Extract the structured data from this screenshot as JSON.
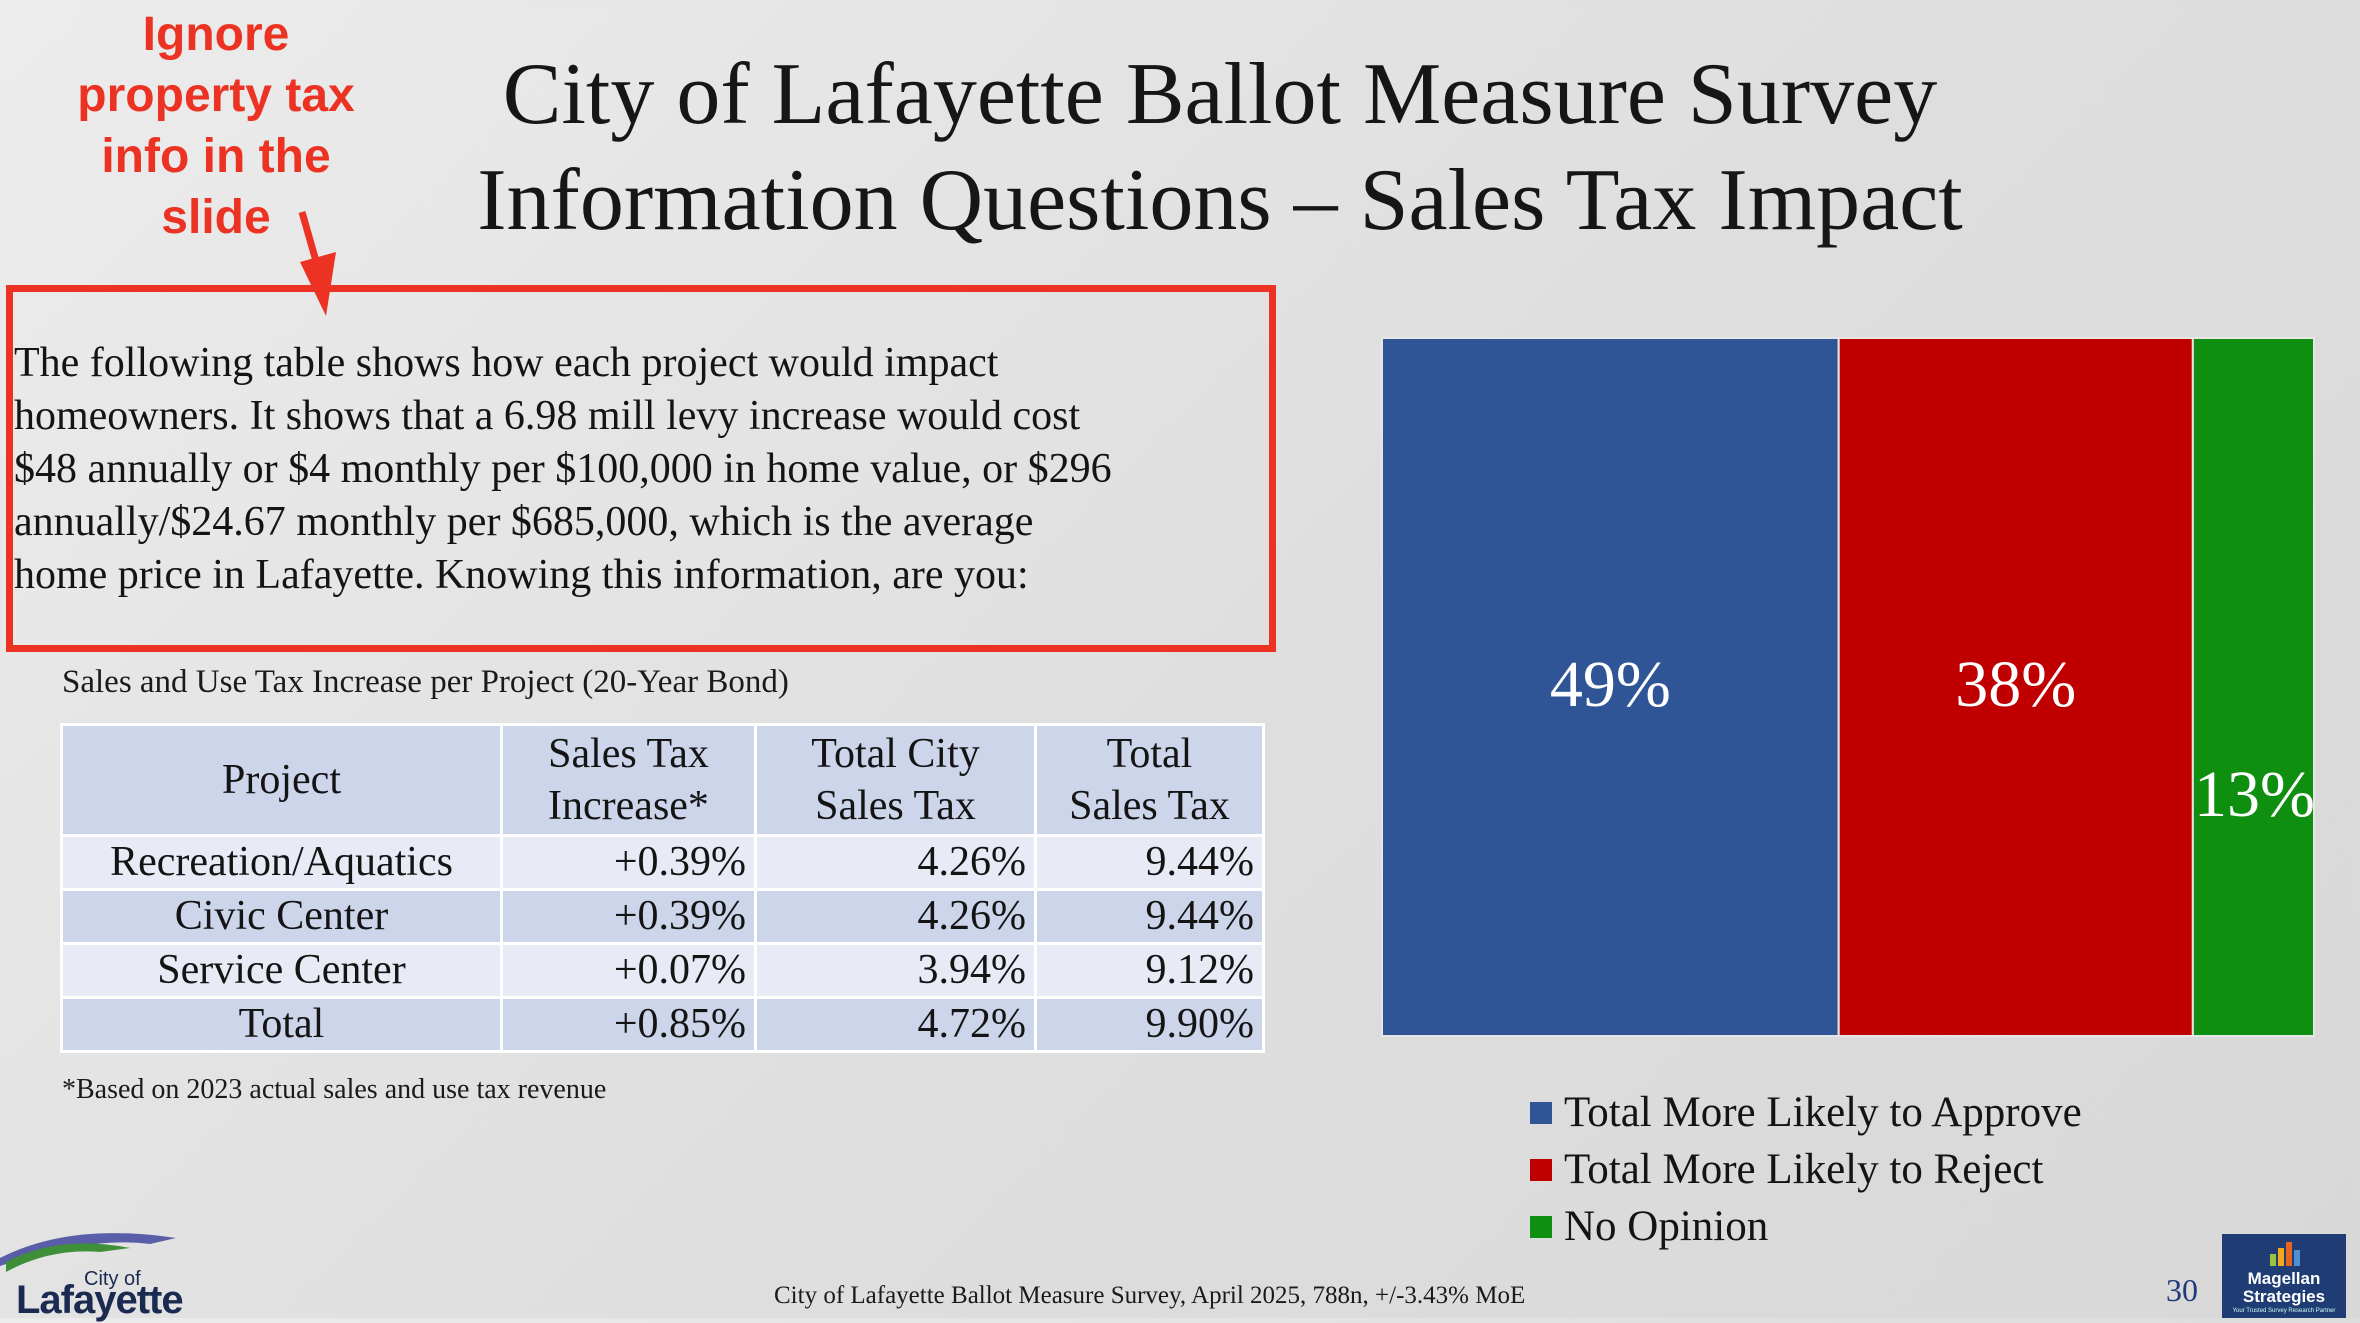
{
  "annotation": {
    "lines": [
      "Ignore",
      "property tax",
      "info in the",
      "slide"
    ],
    "color": "#ec3323"
  },
  "title": {
    "line1": "City of Lafayette Ballot Measure Survey",
    "line2": "Information Questions – Sales Tax Impact"
  },
  "intro_lines": [
    "The following table shows how each project would impact",
    "homeowners. It shows that a 6.98 mill levy increase would cost",
    "$48 annually or $4 monthly per $100,000 in home value, or $296",
    "annually/$24.67 monthly per $685,000, which is the average",
    "home price in Lafayette. Knowing this information, are you:"
  ],
  "table": {
    "caption": "Sales and Use Tax Increase per Project (20-Year Bond)",
    "headers": [
      [
        "Project"
      ],
      [
        "Sales Tax",
        "Increase*"
      ],
      [
        "Total City",
        "Sales Tax"
      ],
      [
        "Total",
        "Sales Tax"
      ]
    ],
    "rows": [
      [
        "Recreation/Aquatics",
        "+0.39%",
        "4.26%",
        "9.44%"
      ],
      [
        "Civic Center",
        "+0.39%",
        "4.26%",
        "9.44%"
      ],
      [
        "Service Center",
        "+0.07%",
        "3.94%",
        "9.12%"
      ],
      [
        "Total",
        "+0.85%",
        "4.72%",
        "9.90%"
      ]
    ],
    "footnote": "*Based on 2023 actual sales and use tax revenue"
  },
  "chart_data": {
    "type": "bar",
    "stacked": true,
    "orientation": "horizontal-100pct",
    "categories": [
      ""
    ],
    "series": [
      {
        "name": "Total More Likely to Approve",
        "values": [
          49
        ],
        "label": "49%",
        "color": "#2f5597"
      },
      {
        "name": "Total More Likely to Reject",
        "values": [
          38
        ],
        "label": "38%",
        "color": "#c00000"
      },
      {
        "name": "No Opinion",
        "values": [
          13
        ],
        "label": "13%",
        "color": "#0f8f10"
      }
    ],
    "xlim": [
      0,
      100
    ],
    "grid": false,
    "legend": "bottom"
  },
  "footer": {
    "source": "City of Lafayette Ballot Measure Survey, April 2025, 788n, +/-3.43% MoE",
    "page": "30"
  },
  "logos": {
    "left": {
      "small": "City of",
      "big": "Lafayette"
    },
    "right": {
      "name_line1": "Magellan",
      "name_line2": "Strategies",
      "tagline": "Your Trusted Survey Research Partner"
    }
  }
}
